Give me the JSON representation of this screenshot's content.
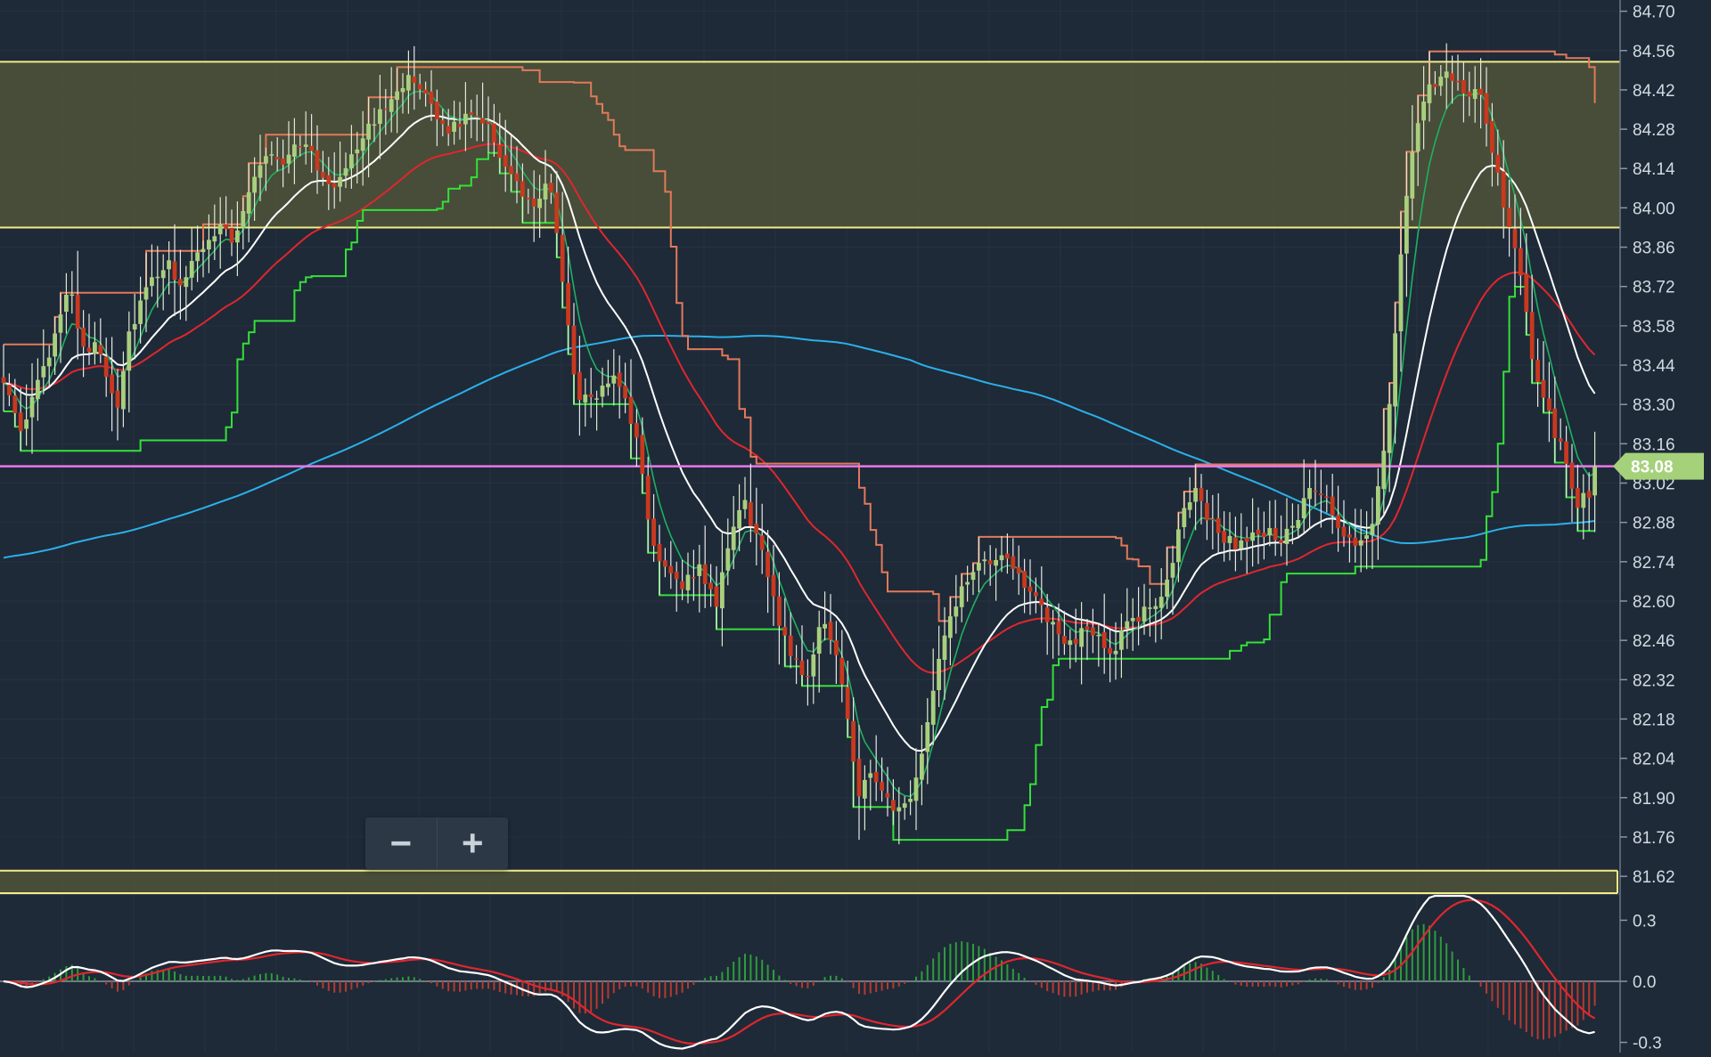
{
  "chart_data": [
    {
      "type": "candlestick",
      "panel": "price",
      "ylim": [
        81.56,
        84.74
      ],
      "price_ticks": [
        "84.70",
        "84.56",
        "84.42",
        "84.28",
        "84.14",
        "84.00",
        "83.86",
        "83.72",
        "83.58",
        "83.44",
        "83.30",
        "83.16",
        "83.02",
        "82.88",
        "82.74",
        "82.60",
        "82.46",
        "82.32",
        "82.18",
        "82.04",
        "81.90",
        "81.76",
        "81.62"
      ],
      "current_price": "83.08",
      "colors": {
        "background": "#1e2a38",
        "up": "#a9cf7e",
        "down": "#c8391f",
        "zone_fill": "#4d5238",
        "zone_border": "#f3ec86",
        "price_line": "#e879e8",
        "price_badge": "#a5d17a",
        "ema_fast": "#1fb060",
        "ema_white": "#ffffff",
        "ema_red": "#e0262e",
        "sma_blue": "#2bb0ea",
        "stop_green": "#35e039",
        "stop_orange": "#e2795a"
      },
      "zones": [
        {
          "top": 84.52,
          "bottom": 83.93
        },
        {
          "top": 81.64,
          "bottom": 81.5
        }
      ],
      "horizontal_line": 83.08,
      "anchors": [
        [
          0,
          83.4
        ],
        [
          15,
          83.18
        ],
        [
          25,
          83.3
        ],
        [
          45,
          83.52
        ],
        [
          60,
          83.75
        ],
        [
          75,
          83.45
        ],
        [
          85,
          83.55
        ],
        [
          95,
          83.4
        ],
        [
          105,
          83.3
        ],
        [
          115,
          83.55
        ],
        [
          130,
          83.7
        ],
        [
          150,
          83.8
        ],
        [
          165,
          83.72
        ],
        [
          180,
          83.85
        ],
        [
          200,
          83.95
        ],
        [
          210,
          83.88
        ],
        [
          225,
          84.05
        ],
        [
          240,
          84.2
        ],
        [
          255,
          84.15
        ],
        [
          270,
          84.25
        ],
        [
          285,
          84.18
        ],
        [
          300,
          84.05
        ],
        [
          320,
          84.2
        ],
        [
          340,
          84.3
        ],
        [
          355,
          84.4
        ],
        [
          370,
          84.46
        ],
        [
          385,
          84.4
        ],
        [
          400,
          84.3
        ],
        [
          415,
          84.28
        ],
        [
          430,
          84.35
        ],
        [
          445,
          84.3
        ],
        [
          460,
          84.15
        ],
        [
          475,
          84.05
        ],
        [
          490,
          84.0
        ],
        [
          500,
          84.1
        ],
        [
          508,
          83.9
        ],
        [
          515,
          83.7
        ],
        [
          525,
          83.35
        ],
        [
          540,
          83.3
        ],
        [
          555,
          83.4
        ],
        [
          570,
          83.35
        ],
        [
          585,
          83.1
        ],
        [
          595,
          82.8
        ],
        [
          610,
          82.72
        ],
        [
          625,
          82.66
        ],
        [
          640,
          82.72
        ],
        [
          655,
          82.58
        ],
        [
          670,
          82.88
        ],
        [
          680,
          82.95
        ],
        [
          695,
          82.8
        ],
        [
          710,
          82.55
        ],
        [
          725,
          82.4
        ],
        [
          740,
          82.32
        ],
        [
          750,
          82.55
        ],
        [
          765,
          82.4
        ],
        [
          775,
          82.2
        ],
        [
          785,
          81.92
        ],
        [
          795,
          82.0
        ],
        [
          805,
          81.95
        ],
        [
          815,
          81.85
        ],
        [
          825,
          81.85
        ],
        [
          835,
          81.9
        ],
        [
          845,
          82.1
        ],
        [
          860,
          82.4
        ],
        [
          875,
          82.6
        ],
        [
          890,
          82.7
        ],
        [
          910,
          82.75
        ],
        [
          930,
          82.72
        ],
        [
          945,
          82.62
        ],
        [
          960,
          82.52
        ],
        [
          975,
          82.45
        ],
        [
          990,
          82.48
        ],
        [
          1005,
          82.5
        ],
        [
          1015,
          82.4
        ],
        [
          1030,
          82.5
        ],
        [
          1045,
          82.55
        ],
        [
          1060,
          82.6
        ],
        [
          1075,
          82.75
        ],
        [
          1085,
          82.95
        ],
        [
          1095,
          83.0
        ],
        [
          1105,
          82.9
        ],
        [
          1115,
          82.85
        ],
        [
          1130,
          82.8
        ],
        [
          1145,
          82.82
        ],
        [
          1160,
          82.85
        ],
        [
          1175,
          82.82
        ],
        [
          1190,
          82.9
        ],
        [
          1200,
          83.0
        ],
        [
          1212,
          82.98
        ],
        [
          1225,
          82.85
        ],
        [
          1240,
          82.8
        ],
        [
          1255,
          82.85
        ],
        [
          1265,
          83.05
        ],
        [
          1275,
          83.4
        ],
        [
          1285,
          83.9
        ],
        [
          1295,
          84.25
        ],
        [
          1305,
          84.4
        ],
        [
          1315,
          84.45
        ],
        [
          1325,
          84.5
        ],
        [
          1335,
          84.45
        ],
        [
          1345,
          84.4
        ],
        [
          1355,
          84.45
        ],
        [
          1365,
          84.25
        ],
        [
          1375,
          84.05
        ],
        [
          1385,
          83.9
        ],
        [
          1395,
          83.7
        ],
        [
          1405,
          83.45
        ],
        [
          1415,
          83.3
        ],
        [
          1425,
          83.2
        ],
        [
          1435,
          83.1
        ],
        [
          1445,
          82.95
        ],
        [
          1455,
          82.98
        ],
        [
          1465,
          83.08
        ]
      ],
      "series": []
    },
    {
      "type": "line",
      "panel": "oscillator",
      "ylim": [
        -0.35,
        0.42
      ],
      "ticks": [
        "0.3",
        "0.0",
        "-0.3"
      ],
      "series": [],
      "histogram_colors": {
        "positive": "#2e9c3c",
        "negative": "#b53a30"
      }
    }
  ]
}
